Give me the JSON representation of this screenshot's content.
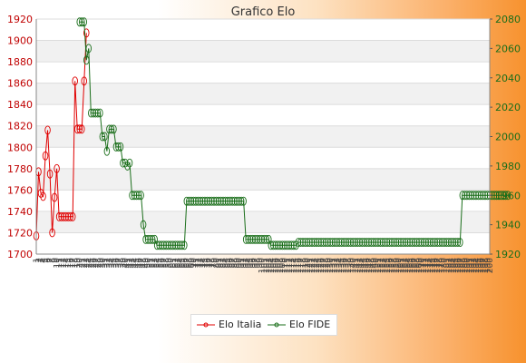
{
  "chart_data": {
    "type": "line",
    "title": "Grafico Elo",
    "y_left": {
      "ticks": [
        1700,
        1720,
        1740,
        1760,
        1780,
        1800,
        1820,
        1840,
        1860,
        1880,
        1900,
        1920
      ],
      "ylim": [
        1700,
        1920
      ]
    },
    "y_right": {
      "ticks": [
        1920,
        1940,
        1960,
        1980,
        2000,
        2020,
        2040,
        2060,
        2080
      ],
      "ylim": [
        1920,
        2080
      ]
    },
    "x_tick_labels": [
      "1",
      "2",
      "3",
      "4",
      "5",
      "6",
      "7",
      "8",
      "9",
      "10",
      "11",
      "12",
      "13",
      "14",
      "15",
      "16",
      "17",
      "18",
      "19",
      "20",
      "21",
      "22",
      "23",
      "24",
      "25",
      "26",
      "27",
      "28",
      "29",
      "30",
      "31",
      "32",
      "33",
      "34",
      "35",
      "36",
      "37",
      "38",
      "39",
      "40",
      "41",
      "42",
      "43",
      "44",
      "45",
      "46",
      "47",
      "48",
      "49",
      "50",
      "51",
      "52",
      "53",
      "54",
      "55",
      "56",
      "57",
      "58",
      "59",
      "60",
      "61",
      "62",
      "63",
      "64",
      "65",
      "66",
      "67",
      "68",
      "69",
      "70",
      "71",
      "72",
      "73",
      "74",
      "75",
      "76",
      "77",
      "78",
      "79",
      "80",
      "81",
      "82",
      "83",
      "84",
      "85",
      "86",
      "87",
      "88",
      "89",
      "90",
      "91",
      "92",
      "93",
      "94",
      "95",
      "96",
      "97",
      "98",
      "99",
      "100",
      "101",
      "102",
      "103",
      "104",
      "105",
      "106",
      "107",
      "108",
      "109",
      "110",
      "111",
      "112",
      "113",
      "114",
      "115",
      "116",
      "117",
      "118",
      "119",
      "120",
      "121",
      "122",
      "123",
      "124",
      "125",
      "126",
      "127",
      "128",
      "129",
      "130",
      "131",
      "132",
      "133",
      "134",
      "135",
      "136",
      "137",
      "138",
      "139",
      "140",
      "141",
      "142",
      "143",
      "144",
      "145",
      "146",
      "147",
      "148",
      "149",
      "150",
      "151",
      "152",
      "153",
      "154",
      "155",
      "156",
      "157",
      "158",
      "159",
      "160",
      "161",
      "162",
      "163",
      "164",
      "165",
      "166",
      "167",
      "168",
      "169",
      "170",
      "171",
      "172",
      "173",
      "174",
      "175",
      "176",
      "177",
      "178",
      "179",
      "180",
      "181",
      "182",
      "183",
      "184",
      "185",
      "186",
      "187",
      "188",
      "189",
      "190",
      "191",
      "192",
      "193",
      "194",
      "195",
      "196",
      "197",
      "198",
      "199",
      "200"
    ],
    "grid": true,
    "legend_position": "bottom",
    "series": [
      {
        "name": "Elo Italia",
        "axis": "left",
        "color": "#e00000",
        "start": 1,
        "values": [
          1717,
          1777,
          1757,
          1754,
          1792,
          1816,
          1775,
          1720,
          1753,
          1780,
          1735,
          1735,
          1735,
          1735,
          1735,
          1735,
          1735,
          1862,
          1817,
          1817,
          1817,
          1862,
          1907
        ]
      },
      {
        "name": "Elo FIDE",
        "axis": "right",
        "color": "#1a6e1a",
        "start": 20,
        "values": [
          2078,
          2078,
          2078,
          2052,
          2060,
          2016,
          2016,
          2016,
          2016,
          2016,
          2000,
          2000,
          1990,
          2005,
          2005,
          2005,
          1993,
          1993,
          1993,
          1982,
          1982,
          1980,
          1982,
          1960,
          1960,
          1960,
          1960,
          1960,
          1940,
          1930,
          1930,
          1930,
          1930,
          1930,
          1926,
          1926,
          1926,
          1926,
          1926,
          1926,
          1926,
          1926,
          1926,
          1926,
          1926,
          1926,
          1926,
          1956,
          1956,
          1956,
          1956,
          1956,
          1956,
          1956,
          1956,
          1956,
          1956,
          1956,
          1956,
          1956,
          1956,
          1956,
          1956,
          1956,
          1956,
          1956,
          1956,
          1956,
          1956,
          1956,
          1956,
          1956,
          1956,
          1930,
          1930,
          1930,
          1930,
          1930,
          1930,
          1930,
          1930,
          1930,
          1930,
          1930,
          1926,
          1926,
          1926,
          1926,
          1926,
          1926,
          1926,
          1926,
          1926,
          1926,
          1926,
          1926,
          1928,
          1928,
          1928,
          1928,
          1928,
          1928,
          1928,
          1928,
          1928,
          1928,
          1928,
          1928,
          1928,
          1928,
          1928,
          1928,
          1928,
          1928,
          1928,
          1928,
          1928,
          1928,
          1928,
          1928,
          1928,
          1928,
          1928,
          1928,
          1928,
          1928,
          1928,
          1928,
          1928,
          1928,
          1928,
          1928,
          1928,
          1928,
          1928,
          1928,
          1928,
          1928,
          1928,
          1928,
          1928,
          1928,
          1928,
          1928,
          1928,
          1928,
          1928,
          1928,
          1928,
          1928,
          1928,
          1928,
          1928,
          1928,
          1928,
          1928,
          1928,
          1928,
          1928,
          1928,
          1928,
          1928,
          1928,
          1928,
          1928,
          1928,
          1928,
          1928,
          1960,
          1960,
          1960,
          1960,
          1960,
          1960,
          1960,
          1960,
          1960,
          1960,
          1960,
          1960,
          1960,
          1960,
          1960,
          1960,
          1960,
          1960,
          1960,
          1960,
          1960
        ]
      }
    ]
  }
}
